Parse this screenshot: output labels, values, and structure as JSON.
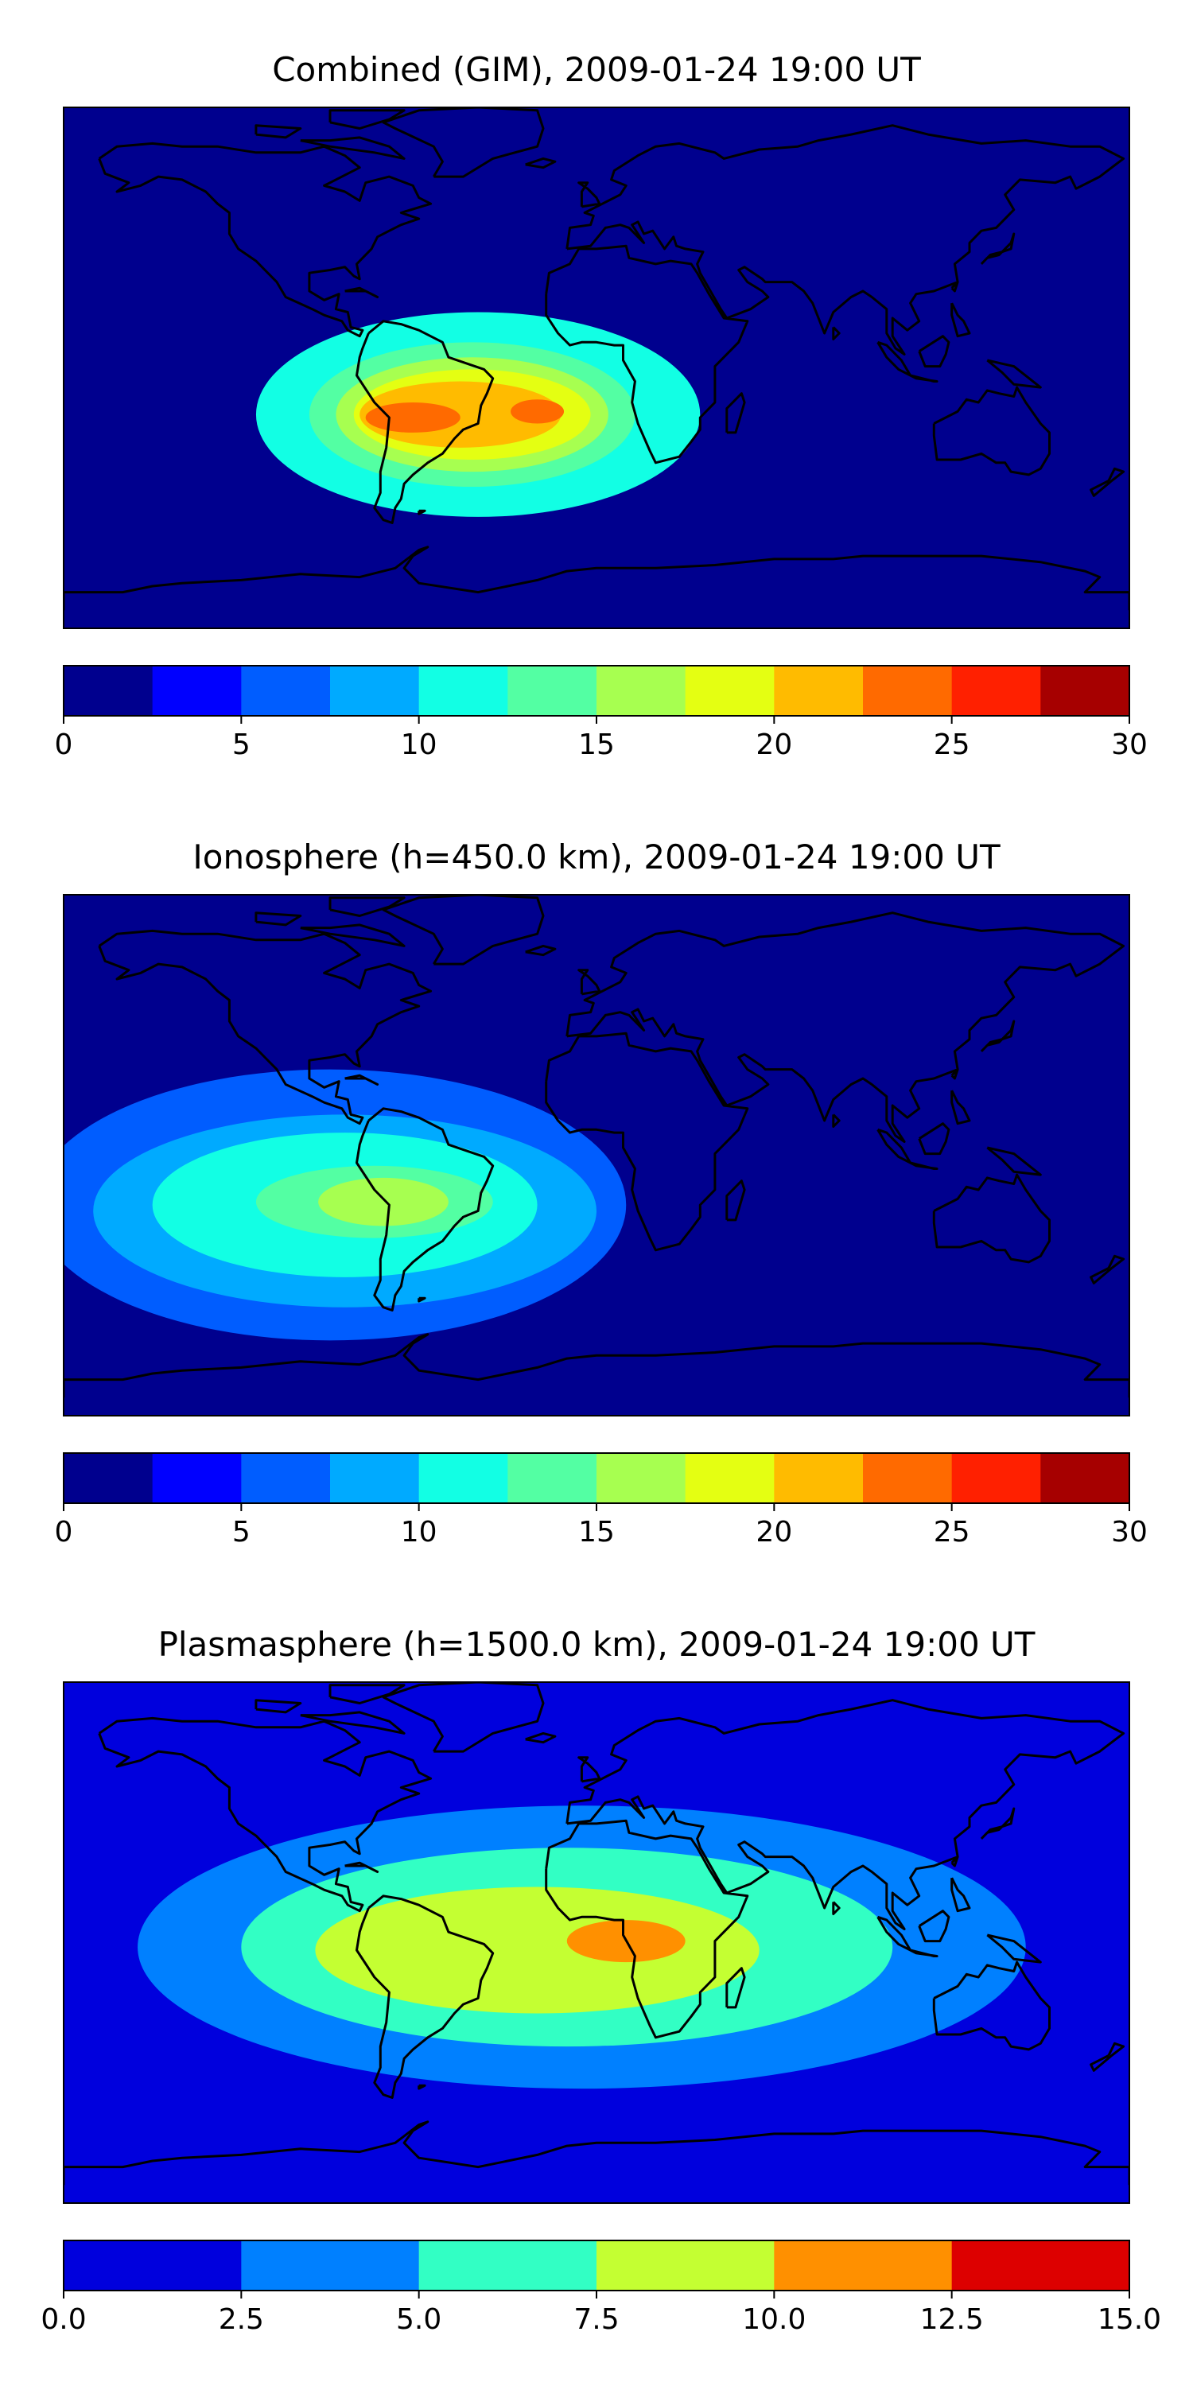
{
  "chart_data": [
    {
      "type": "heatmap",
      "title": "Combined (GIM), 2009-01-24 19:00 UT",
      "colorbar": {
        "range": [
          0,
          30
        ],
        "levels": [
          0,
          2.5,
          5,
          7.5,
          10,
          12.5,
          15,
          17.5,
          20,
          22.5,
          25,
          27.5,
          30
        ],
        "tick_values": [
          0,
          5,
          10,
          15,
          20,
          25,
          30
        ],
        "tick_labels": [
          "0",
          "5",
          "10",
          "15",
          "20",
          "25",
          "30"
        ],
        "colors": [
          "#00008e",
          "#0000ff",
          "#005dff",
          "#00aaff",
          "#12ffe4",
          "#53ffa3",
          "#a7ff50",
          "#e4ff12",
          "#ffbb00",
          "#ff6a00",
          "#ff2000",
          "#a60000"
        ]
      },
      "features": [
        {
          "center": [
            -40,
            -19
          ],
          "radius": [
            75,
            34
          ],
          "level": 10
        },
        {
          "center": [
            -42,
            -19
          ],
          "radius": [
            55,
            24
          ],
          "level": 13
        },
        {
          "center": [
            -42,
            -19
          ],
          "radius": [
            46,
            19
          ],
          "level": 15
        },
        {
          "center": [
            -42,
            -19
          ],
          "radius": [
            40,
            15
          ],
          "level": 17.5
        },
        {
          "center": [
            -46,
            -19
          ],
          "radius": [
            34,
            11
          ],
          "level": 20
        },
        {
          "center": [
            -62,
            -20
          ],
          "radius": [
            16,
            5
          ],
          "level": 22.5
        },
        {
          "center": [
            -20,
            -18
          ],
          "radius": [
            9,
            4
          ],
          "level": 22.5
        }
      ]
    },
    {
      "type": "heatmap",
      "title": "Ionosphere  (h=450.0 km), 2009-01-24 19:00 UT",
      "colorbar": {
        "range": [
          0,
          30
        ],
        "levels": [
          0,
          2.5,
          5,
          7.5,
          10,
          12.5,
          15,
          17.5,
          20,
          22.5,
          25,
          27.5,
          30
        ],
        "tick_values": [
          0,
          5,
          10,
          15,
          20,
          25,
          30
        ],
        "tick_labels": [
          "0",
          "5",
          "10",
          "15",
          "20",
          "25",
          "30"
        ],
        "colors": [
          "#00008e",
          "#0000ff",
          "#005dff",
          "#00aaff",
          "#12ffe4",
          "#53ffa3",
          "#a7ff50",
          "#e4ff12",
          "#ffbb00",
          "#ff6a00",
          "#ff2000",
          "#a60000"
        ]
      },
      "features": [
        {
          "center": [
            -90,
            -20
          ],
          "radius": [
            100,
            45
          ],
          "level": 5
        },
        {
          "center": [
            -85,
            -22
          ],
          "radius": [
            85,
            32
          ],
          "level": 7.5
        },
        {
          "center": [
            -85,
            -20
          ],
          "radius": [
            65,
            24
          ],
          "level": 10
        },
        {
          "center": [
            -75,
            -19
          ],
          "radius": [
            40,
            12
          ],
          "level": 12.5
        },
        {
          "center": [
            -72,
            -19
          ],
          "radius": [
            22,
            8
          ],
          "level": 15
        }
      ]
    },
    {
      "type": "heatmap",
      "title": "Plasmasphere (h=1500.0 km), 2009-01-24 19:00 UT",
      "colorbar": {
        "range": [
          0,
          15
        ],
        "levels": [
          0,
          2.5,
          5,
          7.5,
          10,
          12.5,
          15
        ],
        "tick_values": [
          0,
          2.5,
          5,
          7.5,
          10,
          12.5,
          15
        ],
        "tick_labels": [
          "0.0",
          "2.5",
          "5.0",
          "7.5",
          "10.0",
          "12.5",
          "15.0"
        ],
        "colors": [
          "#0000dd",
          "#0080ff",
          "#32ffc4",
          "#c4ff32",
          "#ff9000",
          "#dd0000"
        ]
      },
      "features": [
        {
          "center": [
            -5,
            -5
          ],
          "radius": [
            150,
            47
          ],
          "level": 2.5
        },
        {
          "center": [
            -10,
            -5
          ],
          "radius": [
            110,
            33
          ],
          "level": 5
        },
        {
          "center": [
            -20,
            -6
          ],
          "radius": [
            75,
            21
          ],
          "level": 7.5
        },
        {
          "center": [
            10,
            -3
          ],
          "radius": [
            20,
            7
          ],
          "level": 10
        }
      ]
    }
  ]
}
